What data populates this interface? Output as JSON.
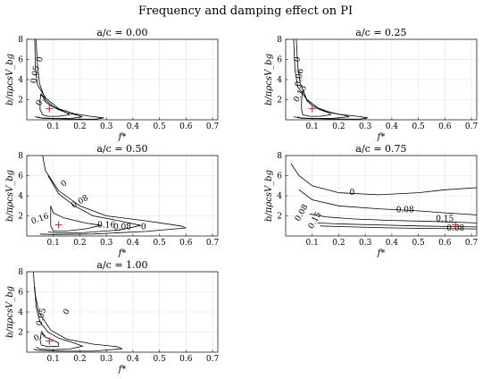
{
  "figure": {
    "title": "Frequency and damping effect on PI"
  },
  "chart_data": [
    {
      "type": "contour",
      "title": "a/c = 0.00",
      "xlabel": "f*",
      "ylabel": "b/πρcsV_bg",
      "xlim": [
        0.0,
        0.72
      ],
      "ylim": [
        0,
        8
      ],
      "xticks": [
        "0.1",
        "0.2",
        "0.3",
        "0.4",
        "0.5",
        "0.6",
        "0.7"
      ],
      "yticks": [
        "2",
        "4",
        "6",
        "8"
      ],
      "grid": true,
      "contour_labels": [
        "0",
        "0.05",
        "0.1"
      ],
      "optimum": {
        "x": 0.085,
        "y": 1.1
      },
      "contours": [
        {
          "level": "0",
          "points": [
            [
              0.03,
              8
            ],
            [
              0.033,
              5
            ],
            [
              0.04,
              3.5
            ],
            [
              0.07,
              2.2
            ],
            [
              0.12,
              1.1
            ],
            [
              0.18,
              0.6
            ],
            [
              0.24,
              0.35
            ],
            [
              0.29,
              0.2
            ],
            [
              0.26,
              0.06
            ],
            [
              0.15,
              0.08
            ],
            [
              0.06,
              0.15
            ],
            [
              0.03,
              0.3
            ]
          ]
        },
        {
          "level": "0.05",
          "points": [
            [
              0.035,
              8
            ],
            [
              0.04,
              5.5
            ],
            [
              0.048,
              3.6
            ],
            [
              0.07,
              2.0
            ],
            [
              0.1,
              1.3
            ],
            [
              0.15,
              0.7
            ],
            [
              0.19,
              0.45
            ],
            [
              0.21,
              0.3
            ],
            [
              0.17,
              0.15
            ],
            [
              0.1,
              0.12
            ],
            [
              0.05,
              0.2
            ],
            [
              0.04,
              0.3
            ]
          ]
        },
        {
          "level": "0.1",
          "points": [
            [
              0.055,
              2.6
            ],
            [
              0.07,
              1.8
            ],
            [
              0.09,
              1.4
            ],
            [
              0.12,
              1.0
            ],
            [
              0.15,
              0.7
            ],
            [
              0.16,
              0.5
            ],
            [
              0.12,
              0.35
            ],
            [
              0.08,
              0.35
            ],
            [
              0.06,
              0.5
            ],
            [
              0.05,
              1.0
            ],
            [
              0.05,
              2.0
            ],
            [
              0.055,
              2.6
            ]
          ]
        }
      ]
    },
    {
      "type": "contour",
      "title": "a/c = 0.25",
      "xlabel": "f*",
      "ylabel": "b/πρcsV_bg",
      "xlim": [
        0.0,
        0.72
      ],
      "ylim": [
        0,
        8
      ],
      "xticks": [
        "0.1",
        "0.2",
        "0.3",
        "0.4",
        "0.5",
        "0.6",
        "0.7"
      ],
      "yticks": [
        "2",
        "4",
        "6",
        "8"
      ],
      "grid": true,
      "contour_labels": [
        "0",
        "0.06",
        "0.13"
      ],
      "optimum": {
        "x": 0.1,
        "y": 1.1
      },
      "contours": [
        {
          "level": "0",
          "points": [
            [
              0.03,
              8
            ],
            [
              0.035,
              5
            ],
            [
              0.045,
              3.3
            ],
            [
              0.08,
              2.0
            ],
            [
              0.13,
              1.0
            ],
            [
              0.2,
              0.55
            ],
            [
              0.27,
              0.35
            ],
            [
              0.31,
              0.2
            ],
            [
              0.28,
              0.06
            ],
            [
              0.16,
              0.08
            ],
            [
              0.06,
              0.15
            ],
            [
              0.03,
              0.3
            ]
          ]
        },
        {
          "level": "0.06",
          "points": [
            [
              0.04,
              8
            ],
            [
              0.045,
              5.5
            ],
            [
              0.055,
              3.6
            ],
            [
              0.08,
              2.0
            ],
            [
              0.12,
              1.2
            ],
            [
              0.17,
              0.7
            ],
            [
              0.22,
              0.45
            ],
            [
              0.24,
              0.3
            ],
            [
              0.18,
              0.15
            ],
            [
              0.1,
              0.12
            ],
            [
              0.055,
              0.2
            ],
            [
              0.045,
              0.3
            ]
          ]
        },
        {
          "level": "0.13",
          "points": [
            [
              0.065,
              3.0
            ],
            [
              0.08,
              1.9
            ],
            [
              0.1,
              1.4
            ],
            [
              0.13,
              1.0
            ],
            [
              0.16,
              0.7
            ],
            [
              0.17,
              0.5
            ],
            [
              0.13,
              0.35
            ],
            [
              0.09,
              0.35
            ],
            [
              0.065,
              0.5
            ],
            [
              0.06,
              1.0
            ],
            [
              0.06,
              2.0
            ],
            [
              0.065,
              3.0
            ]
          ]
        }
      ]
    },
    {
      "type": "contour",
      "title": "a/c = 0.50",
      "xlabel": "f*",
      "ylabel": "b/πρcsV_bg",
      "xlim": [
        0.0,
        0.72
      ],
      "ylim": [
        0,
        8
      ],
      "xticks": [
        "0.1",
        "0.2",
        "0.3",
        "0.4",
        "0.5",
        "0.6",
        "0.7"
      ],
      "yticks": [
        "2",
        "4",
        "6",
        "8"
      ],
      "grid": true,
      "contour_labels": [
        "0",
        "0.08",
        "0.16",
        "0.16",
        "0.08",
        "0"
      ],
      "optimum": {
        "x": 0.12,
        "y": 1.1
      },
      "contours": [
        {
          "level": "0",
          "points": [
            [
              0.06,
              8
            ],
            [
              0.07,
              6.5
            ],
            [
              0.12,
              4.5
            ],
            [
              0.2,
              3.0
            ],
            [
              0.3,
              2.0
            ],
            [
              0.45,
              1.5
            ],
            [
              0.58,
              1.0
            ],
            [
              0.6,
              0.8
            ],
            [
              0.45,
              0.45
            ],
            [
              0.25,
              0.2
            ],
            [
              0.1,
              0.15
            ],
            [
              0.05,
              0.2
            ]
          ]
        },
        {
          "level": "0.08",
          "points": [
            [
              0.08,
              6.0
            ],
            [
              0.12,
              4.2
            ],
            [
              0.18,
              3.0
            ],
            [
              0.25,
              2.0
            ],
            [
              0.35,
              1.5
            ],
            [
              0.43,
              1.05
            ],
            [
              0.35,
              0.6
            ],
            [
              0.22,
              0.35
            ],
            [
              0.12,
              0.3
            ],
            [
              0.08,
              0.4
            ]
          ]
        },
        {
          "level": "0.16",
          "points": [
            [
              0.09,
              3.0
            ],
            [
              0.1,
              2.3
            ],
            [
              0.14,
              1.8
            ],
            [
              0.22,
              1.3
            ],
            [
              0.28,
              1.05
            ],
            [
              0.22,
              0.7
            ],
            [
              0.15,
              0.5
            ],
            [
              0.1,
              0.5
            ],
            [
              0.09,
              1.0
            ],
            [
              0.09,
              3.0
            ]
          ]
        }
      ]
    },
    {
      "type": "contour",
      "title": "a/c = 0.75",
      "xlabel": "f*",
      "ylabel": "b/πρcsV_bg",
      "xlim": [
        0.0,
        0.72
      ],
      "ylim": [
        0,
        8
      ],
      "xticks": [
        "0.1",
        "0.2",
        "0.3",
        "0.4",
        "0.5",
        "0.6",
        "0.7"
      ],
      "yticks": [
        "2",
        "4",
        "6",
        "8"
      ],
      "grid": true,
      "contour_labels": [
        "0",
        "0.08",
        "0.15",
        "0.08",
        "0.15",
        "0.08"
      ],
      "optimum": {
        "x": 0.64,
        "y": 1.1
      },
      "contours": [
        {
          "level": "0",
          "points": [
            [
              0.02,
              7.2
            ],
            [
              0.05,
              6.0
            ],
            [
              0.1,
              5.0
            ],
            [
              0.2,
              4.3
            ],
            [
              0.35,
              4.1
            ],
            [
              0.5,
              4.3
            ],
            [
              0.6,
              4.6
            ],
            [
              0.72,
              4.8
            ]
          ]
        },
        {
          "level": "0.08",
          "points": [
            [
              0.05,
              4.6
            ],
            [
              0.1,
              3.6
            ],
            [
              0.2,
              3.0
            ],
            [
              0.35,
              2.7
            ],
            [
              0.5,
              2.5
            ],
            [
              0.6,
              2.3
            ],
            [
              0.72,
              2.1
            ]
          ]
        },
        {
          "level": "0.15",
          "points": [
            [
              0.09,
              2.2
            ],
            [
              0.15,
              1.9
            ],
            [
              0.25,
              1.7
            ],
            [
              0.4,
              1.55
            ],
            [
              0.55,
              1.45
            ],
            [
              0.72,
              1.3
            ]
          ]
        },
        {
          "level": "0.08",
          "points": [
            [
              0.12,
              1.3
            ],
            [
              0.2,
              1.2
            ],
            [
              0.35,
              1.1
            ],
            [
              0.5,
              1.0
            ],
            [
              0.72,
              0.9
            ]
          ]
        },
        {
          "level": "0",
          "points": [
            [
              0.13,
              1.0
            ],
            [
              0.25,
              0.9
            ],
            [
              0.4,
              0.8
            ],
            [
              0.55,
              0.75
            ],
            [
              0.72,
              0.7
            ]
          ]
        }
      ]
    },
    {
      "type": "contour",
      "title": "a/c = 1.00",
      "xlabel": "f*",
      "ylabel": "b/πρcsV_bg",
      "xlim": [
        0.0,
        0.72
      ],
      "ylim": [
        0,
        8
      ],
      "xticks": [
        "0.1",
        "0.2",
        "0.3",
        "0.4",
        "0.5",
        "0.6",
        "0.7"
      ],
      "yticks": [
        "2",
        "4",
        "6",
        "8"
      ],
      "grid": true,
      "contour_labels": [
        "0",
        "0.05",
        "0.1"
      ],
      "optimum": {
        "x": 0.085,
        "y": 1.1
      },
      "contours": [
        {
          "level": "0",
          "points": [
            [
              0.025,
              8
            ],
            [
              0.03,
              6
            ],
            [
              0.045,
              4.0
            ],
            [
              0.09,
              2.2
            ],
            [
              0.15,
              1.3
            ],
            [
              0.25,
              0.8
            ],
            [
              0.34,
              0.55
            ],
            [
              0.36,
              0.35
            ],
            [
              0.25,
              0.1
            ],
            [
              0.12,
              0.1
            ],
            [
              0.04,
              0.2
            ],
            [
              0.025,
              0.3
            ]
          ]
        },
        {
          "level": "0.05",
          "points": [
            [
              0.03,
              6.5
            ],
            [
              0.035,
              4.5
            ],
            [
              0.05,
              3.0
            ],
            [
              0.08,
              2.0
            ],
            [
              0.12,
              1.4
            ],
            [
              0.18,
              0.9
            ],
            [
              0.21,
              0.6
            ],
            [
              0.16,
              0.3
            ],
            [
              0.1,
              0.25
            ],
            [
              0.05,
              0.3
            ],
            [
              0.035,
              0.5
            ]
          ]
        },
        {
          "level": "0.1",
          "points": [
            [
              0.055,
              1.9
            ],
            [
              0.07,
              1.5
            ],
            [
              0.1,
              1.2
            ],
            [
              0.12,
              0.9
            ],
            [
              0.12,
              0.6
            ],
            [
              0.08,
              0.55
            ],
            [
              0.055,
              0.7
            ],
            [
              0.05,
              1.2
            ],
            [
              0.055,
              1.9
            ]
          ]
        }
      ]
    }
  ]
}
